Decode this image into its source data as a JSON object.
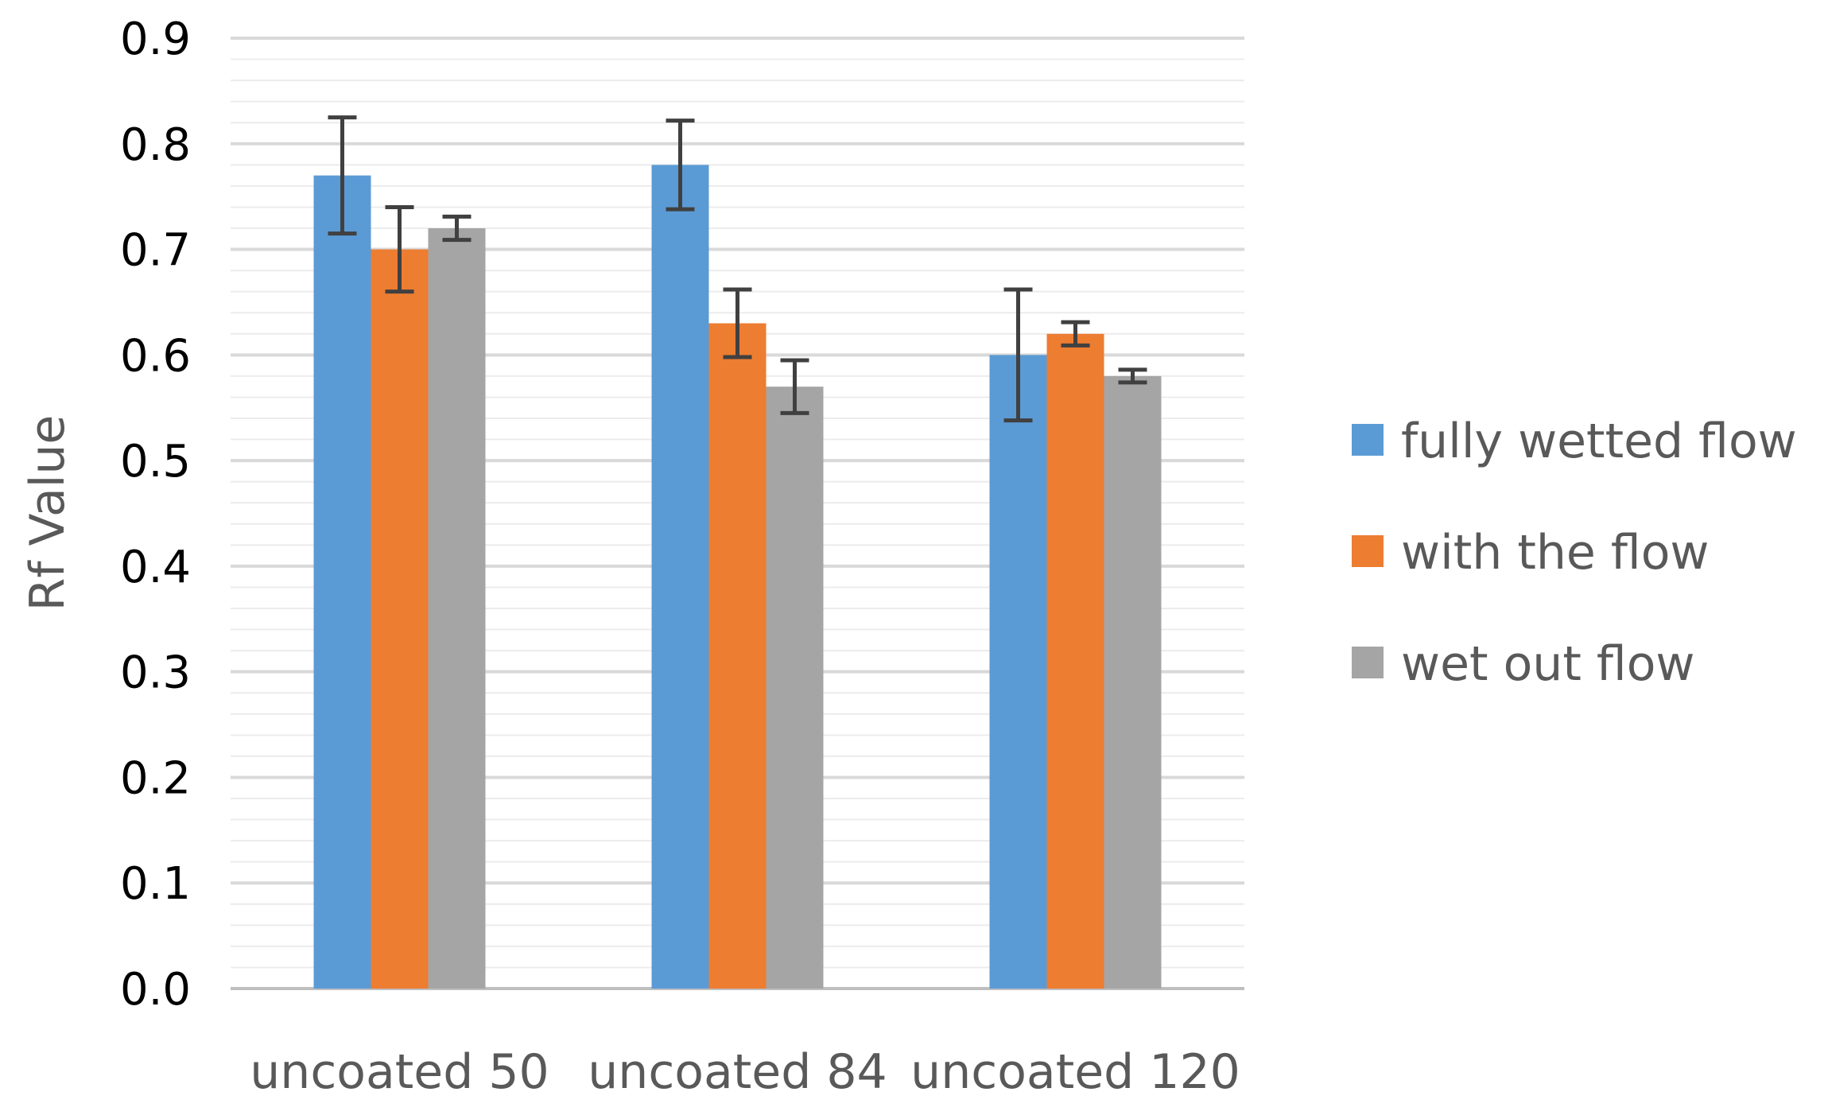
{
  "chart_data": {
    "type": "bar",
    "categories": [
      "uncoated 50",
      "uncoated 84",
      "uncoated 120"
    ],
    "series": [
      {
        "name": "fully wetted flow",
        "color": "#5B9BD5",
        "values": [
          0.77,
          0.78,
          0.6
        ],
        "errors": [
          0.055,
          0.042,
          0.062
        ]
      },
      {
        "name": "with the flow",
        "color": "#ED7D31",
        "values": [
          0.7,
          0.63,
          0.62
        ],
        "errors": [
          0.04,
          0.032,
          0.011
        ]
      },
      {
        "name": "wet out flow",
        "color": "#A5A5A5",
        "values": [
          0.72,
          0.57,
          0.58
        ],
        "errors": [
          0.011,
          0.025,
          0.006
        ]
      }
    ],
    "ylabel": "Rf Value",
    "xlabel": "",
    "ylim": [
      0,
      0.9
    ],
    "yticks": [
      "0.0",
      "0.1",
      "0.2",
      "0.3",
      "0.4",
      "0.5",
      "0.6",
      "0.7",
      "0.8",
      "0.9"
    ],
    "grid": true,
    "minor_grid": true,
    "legend_position": "right",
    "error_bar_color": "#404040"
  }
}
